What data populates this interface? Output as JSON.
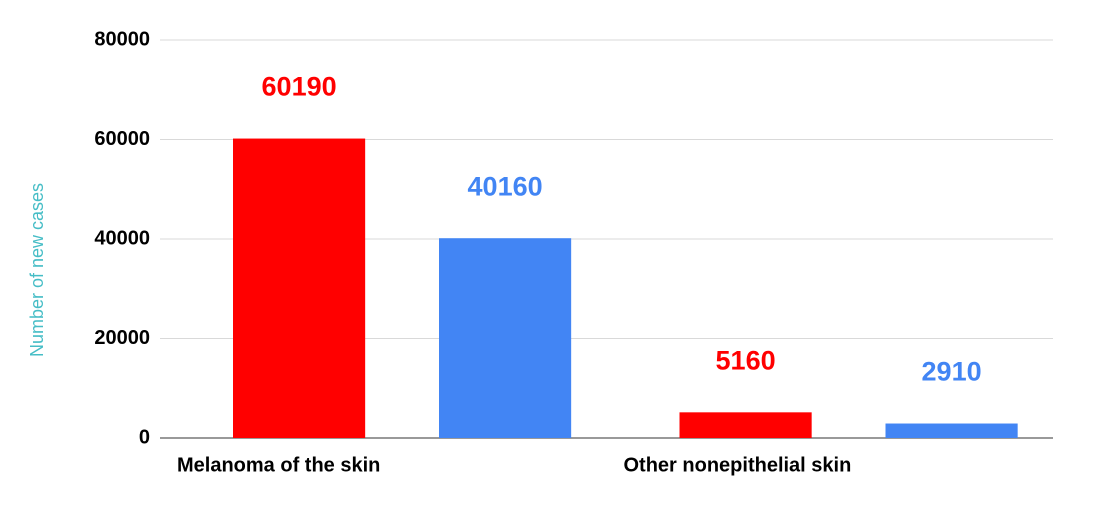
{
  "chart_data": {
    "type": "bar",
    "y_label": "Number of new cases",
    "categories": [
      "Melanoma of the skin",
      "Other nonepithelial skin"
    ],
    "series": [
      {
        "color": "#ff0000",
        "values": [
          60190,
          5160
        ]
      },
      {
        "color": "#4285f4",
        "values": [
          40160,
          2910
        ]
      }
    ],
    "ylim": [
      0,
      80000
    ],
    "yticks": [
      0,
      20000,
      40000,
      60000,
      80000
    ],
    "grid": true
  }
}
